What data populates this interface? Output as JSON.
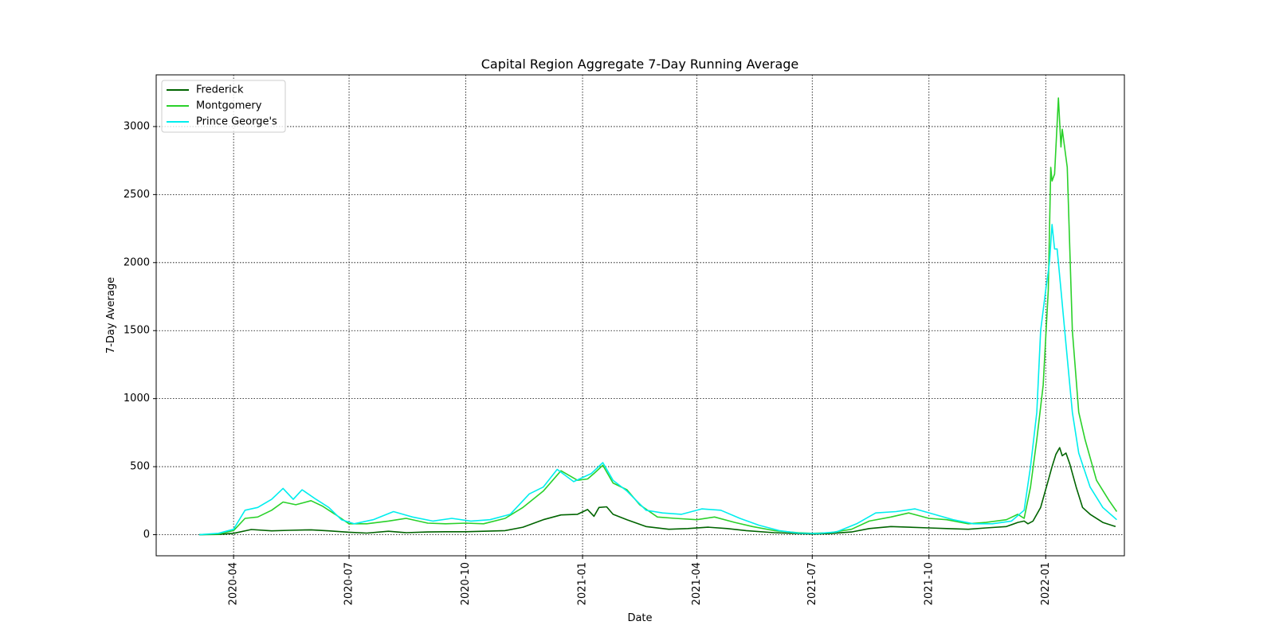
{
  "chart_data": {
    "type": "line",
    "title": "Capital Region Aggregate 7-Day Running Average",
    "xlabel": "Date",
    "ylabel": "7-Day Average",
    "x_ticks": [
      "2020-04",
      "2020-07",
      "2020-10",
      "2021-01",
      "2021-04",
      "2021-07",
      "2021-10",
      "2022-01"
    ],
    "y_ticks": [
      0,
      500,
      1000,
      1500,
      2000,
      2500,
      3000
    ],
    "xlim": [
      "2020-01-31",
      "2022-03-04"
    ],
    "ylim": [
      -155,
      3380
    ],
    "grid": true,
    "legend_position": "upper left",
    "series": [
      {
        "name": "Frederick",
        "color": "#006400",
        "points": [
          [
            "2020-03-05",
            0
          ],
          [
            "2020-03-20",
            2
          ],
          [
            "2020-04-01",
            10
          ],
          [
            "2020-04-15",
            38
          ],
          [
            "2020-05-01",
            28
          ],
          [
            "2020-05-15",
            32
          ],
          [
            "2020-06-01",
            36
          ],
          [
            "2020-06-15",
            28
          ],
          [
            "2020-07-01",
            18
          ],
          [
            "2020-07-15",
            12
          ],
          [
            "2020-08-01",
            25
          ],
          [
            "2020-08-15",
            15
          ],
          [
            "2020-09-01",
            20
          ],
          [
            "2020-09-15",
            22
          ],
          [
            "2020-10-01",
            22
          ],
          [
            "2020-10-15",
            25
          ],
          [
            "2020-11-01",
            30
          ],
          [
            "2020-11-15",
            55
          ],
          [
            "2020-12-01",
            110
          ],
          [
            "2020-12-15",
            145
          ],
          [
            "2020-12-28",
            150
          ],
          [
            "2021-01-05",
            185
          ],
          [
            "2021-01-10",
            135
          ],
          [
            "2021-01-14",
            200
          ],
          [
            "2021-01-20",
            205
          ],
          [
            "2021-01-25",
            150
          ],
          [
            "2021-02-05",
            110
          ],
          [
            "2021-02-20",
            60
          ],
          [
            "2021-03-10",
            40
          ],
          [
            "2021-03-25",
            45
          ],
          [
            "2021-04-10",
            55
          ],
          [
            "2021-04-25",
            45
          ],
          [
            "2021-05-10",
            30
          ],
          [
            "2021-06-01",
            15
          ],
          [
            "2021-06-20",
            8
          ],
          [
            "2021-07-01",
            5
          ],
          [
            "2021-07-15",
            8
          ],
          [
            "2021-08-01",
            20
          ],
          [
            "2021-08-15",
            45
          ],
          [
            "2021-09-01",
            60
          ],
          [
            "2021-09-15",
            55
          ],
          [
            "2021-10-01",
            50
          ],
          [
            "2021-10-15",
            45
          ],
          [
            "2021-11-01",
            40
          ],
          [
            "2021-11-15",
            50
          ],
          [
            "2021-12-01",
            60
          ],
          [
            "2021-12-10",
            90
          ],
          [
            "2021-12-15",
            100
          ],
          [
            "2021-12-18",
            80
          ],
          [
            "2021-12-22",
            100
          ],
          [
            "2021-12-28",
            200
          ],
          [
            "2022-01-03",
            400
          ],
          [
            "2022-01-06",
            500
          ],
          [
            "2022-01-09",
            590
          ],
          [
            "2022-01-12",
            640
          ],
          [
            "2022-01-14",
            580
          ],
          [
            "2022-01-17",
            600
          ],
          [
            "2022-01-20",
            520
          ],
          [
            "2022-01-25",
            350
          ],
          [
            "2022-01-30",
            200
          ],
          [
            "2022-02-05",
            150
          ],
          [
            "2022-02-15",
            90
          ],
          [
            "2022-02-25",
            60
          ]
        ]
      },
      {
        "name": "Montgomery",
        "color": "#2ad12a",
        "points": [
          [
            "2020-03-05",
            0
          ],
          [
            "2020-03-20",
            5
          ],
          [
            "2020-04-01",
            30
          ],
          [
            "2020-04-10",
            120
          ],
          [
            "2020-04-20",
            130
          ],
          [
            "2020-05-01",
            180
          ],
          [
            "2020-05-10",
            240
          ],
          [
            "2020-05-20",
            220
          ],
          [
            "2020-06-01",
            250
          ],
          [
            "2020-06-10",
            210
          ],
          [
            "2020-06-20",
            150
          ],
          [
            "2020-07-01",
            80
          ],
          [
            "2020-07-15",
            80
          ],
          [
            "2020-08-01",
            100
          ],
          [
            "2020-08-15",
            120
          ],
          [
            "2020-09-01",
            85
          ],
          [
            "2020-09-15",
            80
          ],
          [
            "2020-10-01",
            85
          ],
          [
            "2020-10-15",
            80
          ],
          [
            "2020-11-01",
            120
          ],
          [
            "2020-11-15",
            200
          ],
          [
            "2020-12-01",
            320
          ],
          [
            "2020-12-15",
            470
          ],
          [
            "2020-12-28",
            400
          ],
          [
            "2021-01-05",
            410
          ],
          [
            "2021-01-10",
            450
          ],
          [
            "2021-01-17",
            510
          ],
          [
            "2021-01-25",
            380
          ],
          [
            "2021-02-05",
            330
          ],
          [
            "2021-02-15",
            220
          ],
          [
            "2021-03-01",
            130
          ],
          [
            "2021-03-15",
            120
          ],
          [
            "2021-04-01",
            110
          ],
          [
            "2021-04-15",
            130
          ],
          [
            "2021-05-01",
            90
          ],
          [
            "2021-05-15",
            60
          ],
          [
            "2021-06-01",
            30
          ],
          [
            "2021-06-20",
            15
          ],
          [
            "2021-07-01",
            10
          ],
          [
            "2021-07-15",
            15
          ],
          [
            "2021-08-01",
            40
          ],
          [
            "2021-08-15",
            100
          ],
          [
            "2021-09-01",
            130
          ],
          [
            "2021-09-15",
            160
          ],
          [
            "2021-10-01",
            120
          ],
          [
            "2021-10-15",
            110
          ],
          [
            "2021-11-01",
            80
          ],
          [
            "2021-11-15",
            90
          ],
          [
            "2021-12-01",
            110
          ],
          [
            "2021-12-10",
            150
          ],
          [
            "2021-12-15",
            120
          ],
          [
            "2021-12-20",
            350
          ],
          [
            "2021-12-25",
            700
          ],
          [
            "2021-12-30",
            1100
          ],
          [
            "2022-01-03",
            1800
          ],
          [
            "2022-01-05",
            2700
          ],
          [
            "2022-01-06",
            2600
          ],
          [
            "2022-01-08",
            2650
          ],
          [
            "2022-01-11",
            3210
          ],
          [
            "2022-01-13",
            2850
          ],
          [
            "2022-01-14",
            2980
          ],
          [
            "2022-01-18",
            2700
          ],
          [
            "2022-01-22",
            1500
          ],
          [
            "2022-01-27",
            900
          ],
          [
            "2022-02-01",
            700
          ],
          [
            "2022-02-10",
            400
          ],
          [
            "2022-02-20",
            250
          ],
          [
            "2022-02-26",
            170
          ]
        ]
      },
      {
        "name": "Prince George's",
        "color": "#00eeee",
        "points": [
          [
            "2020-03-05",
            0
          ],
          [
            "2020-03-20",
            10
          ],
          [
            "2020-04-01",
            40
          ],
          [
            "2020-04-10",
            180
          ],
          [
            "2020-04-20",
            200
          ],
          [
            "2020-05-01",
            260
          ],
          [
            "2020-05-10",
            340
          ],
          [
            "2020-05-18",
            260
          ],
          [
            "2020-05-25",
            330
          ],
          [
            "2020-06-05",
            260
          ],
          [
            "2020-06-15",
            200
          ],
          [
            "2020-06-25",
            110
          ],
          [
            "2020-07-05",
            80
          ],
          [
            "2020-07-20",
            110
          ],
          [
            "2020-08-05",
            170
          ],
          [
            "2020-08-20",
            130
          ],
          [
            "2020-09-05",
            100
          ],
          [
            "2020-09-20",
            120
          ],
          [
            "2020-10-05",
            100
          ],
          [
            "2020-10-20",
            110
          ],
          [
            "2020-11-05",
            150
          ],
          [
            "2020-11-20",
            300
          ],
          [
            "2020-12-01",
            350
          ],
          [
            "2020-12-12",
            480
          ],
          [
            "2020-12-25",
            390
          ],
          [
            "2021-01-08",
            450
          ],
          [
            "2021-01-17",
            530
          ],
          [
            "2021-01-25",
            400
          ],
          [
            "2021-02-05",
            320
          ],
          [
            "2021-02-20",
            180
          ],
          [
            "2021-03-05",
            160
          ],
          [
            "2021-03-20",
            150
          ],
          [
            "2021-04-05",
            190
          ],
          [
            "2021-04-20",
            180
          ],
          [
            "2021-05-05",
            120
          ],
          [
            "2021-05-20",
            70
          ],
          [
            "2021-06-05",
            30
          ],
          [
            "2021-06-20",
            12
          ],
          [
            "2021-07-05",
            8
          ],
          [
            "2021-07-20",
            20
          ],
          [
            "2021-08-05",
            80
          ],
          [
            "2021-08-20",
            160
          ],
          [
            "2021-09-05",
            170
          ],
          [
            "2021-09-20",
            190
          ],
          [
            "2021-10-05",
            150
          ],
          [
            "2021-10-20",
            110
          ],
          [
            "2021-11-05",
            80
          ],
          [
            "2021-11-20",
            80
          ],
          [
            "2021-12-05",
            100
          ],
          [
            "2021-12-15",
            180
          ],
          [
            "2021-12-20",
            500
          ],
          [
            "2021-12-25",
            900
          ],
          [
            "2021-12-28",
            1500
          ],
          [
            "2022-01-01",
            1800
          ],
          [
            "2022-01-04",
            2000
          ],
          [
            "2022-01-06",
            2280
          ],
          [
            "2022-01-08",
            2100
          ],
          [
            "2022-01-10",
            2100
          ],
          [
            "2022-01-13",
            1800
          ],
          [
            "2022-01-17",
            1400
          ],
          [
            "2022-01-22",
            900
          ],
          [
            "2022-01-27",
            600
          ],
          [
            "2022-02-05",
            350
          ],
          [
            "2022-02-15",
            200
          ],
          [
            "2022-02-26",
            110
          ]
        ]
      }
    ]
  }
}
